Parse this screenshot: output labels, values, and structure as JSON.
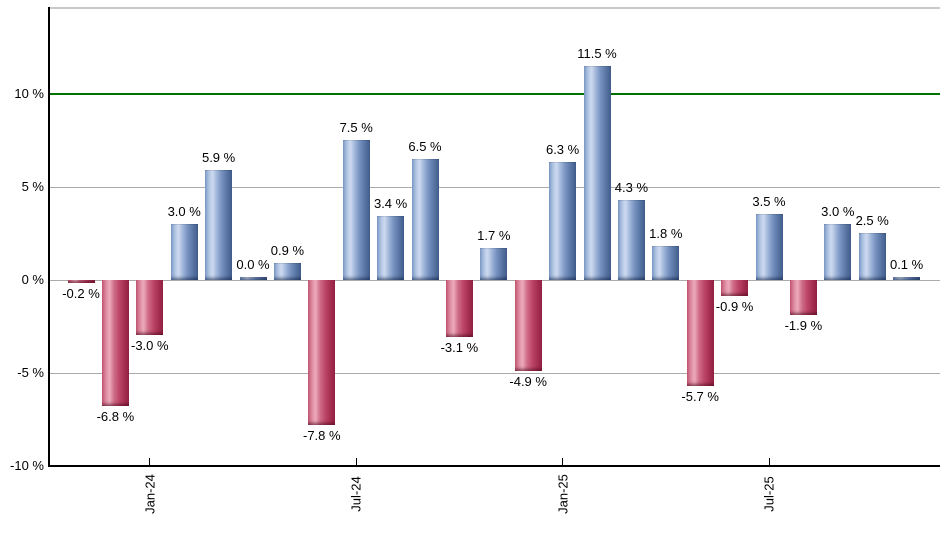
{
  "chart_data": {
    "type": "bar",
    "title": "",
    "values": [
      -0.2,
      -6.8,
      -3.0,
      3.0,
      5.9,
      0.0,
      0.9,
      -7.8,
      7.5,
      3.4,
      6.5,
      -3.1,
      1.7,
      -4.9,
      6.3,
      11.5,
      4.3,
      1.8,
      -5.7,
      -0.9,
      3.5,
      -1.9,
      3.0,
      2.5,
      0.1
    ],
    "bar_labels": [
      "-0.2 %",
      "-6.8 %",
      "-3.0 %",
      "3.0 %",
      "5.9 %",
      "0.0 %",
      "0.9 %",
      "-7.8 %",
      "7.5 %",
      "3.4 %",
      "6.5 %",
      "-3.1 %",
      "1.7 %",
      "-4.9 %",
      "6.3 %",
      "11.5 %",
      "4.3 %",
      "1.8 %",
      "-5.7 %",
      "-0.9 %",
      "3.5 %",
      "-1.9 %",
      "3.0 %",
      "2.5 %",
      "0.1 %"
    ],
    "x_ticks": [
      {
        "label": "Jan-24",
        "index": 2
      },
      {
        "label": "Jul-24",
        "index": 8
      },
      {
        "label": "Jan-25",
        "index": 14
      },
      {
        "label": "Jul-25",
        "index": 20
      }
    ],
    "y_ticks": [
      {
        "label": "10 %",
        "value": 10
      },
      {
        "label": "5 %",
        "value": 5
      },
      {
        "label": "0 %",
        "value": 0
      },
      {
        "label": "-5 %",
        "value": -5
      },
      {
        "label": "-10 %",
        "value": -10
      }
    ],
    "ylim": [
      -10,
      14.6
    ],
    "threshold_line": {
      "value": 10,
      "color": "#007000"
    },
    "grid": true,
    "legend": null,
    "ylabel": "",
    "xlabel": "",
    "colors": {
      "positive_bar": "#6d8cbb",
      "negative_bar": "#c14f6d",
      "grid_line": "#ababab",
      "axis": "#000000",
      "top_border": "#c9c9c9",
      "text": "#000000",
      "background": "#ffffff"
    }
  }
}
